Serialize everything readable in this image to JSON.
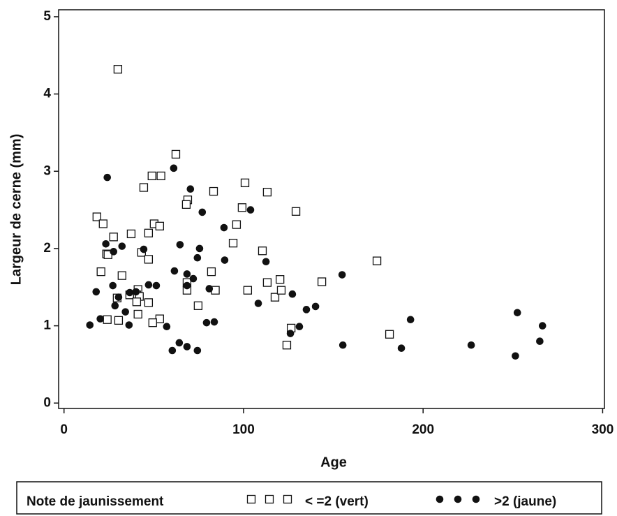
{
  "chart_data": {
    "type": "scatter",
    "x_label": "Age",
    "y_label": "Largeur de cerne (mm)",
    "xlim": [
      -3,
      301
    ],
    "ylim": [
      -0.07,
      5.09
    ],
    "xticks": [
      0,
      100,
      200,
      300
    ],
    "yticks": [
      0,
      1,
      2,
      3,
      4,
      5
    ],
    "legend_title": "Note de jaunissement",
    "legend_position": "bottom",
    "series": [
      {
        "name": "< =2 (vert)",
        "color": "#111111",
        "marker": "square",
        "x": [
          30,
          18.3,
          21.8,
          23.7,
          27.6,
          20.6,
          32.3,
          37.4,
          44.4,
          49,
          54,
          62.3,
          68.9,
          68.1,
          83.3,
          100.8,
          113.2,
          99.2,
          129.2,
          96.1,
          94.2,
          110.5,
          47.1,
          50.2,
          53.3,
          43.2,
          47.1,
          82.1,
          174.3,
          143.6,
          113.2,
          120.3,
          117.5,
          121,
          102.3,
          84.3,
          68.5,
          68.5,
          41.2,
          40.5,
          42,
          36.6,
          29.6,
          40.5,
          47.1,
          74.7,
          41.2,
          24.1,
          30.4,
          53.3,
          49.4,
          126.5,
          124.1,
          181.3,
          24.5
        ],
        "values": [
          4.32,
          2.41,
          2.32,
          1.93,
          2.15,
          1.7,
          1.65,
          2.19,
          2.79,
          2.94,
          2.94,
          3.22,
          2.63,
          2.57,
          2.74,
          2.85,
          2.73,
          2.53,
          2.48,
          2.31,
          2.07,
          1.97,
          2.2,
          2.32,
          2.29,
          1.95,
          1.86,
          1.7,
          1.84,
          1.57,
          1.56,
          1.6,
          1.37,
          1.46,
          1.46,
          1.46,
          1.56,
          1.46,
          1.47,
          1.4,
          1.38,
          1.4,
          1.36,
          1.31,
          1.3,
          1.26,
          1.15,
          1.08,
          1.07,
          1.09,
          1.04,
          0.97,
          0.75,
          0.89,
          1.92
        ]
      },
      {
        "name": ">2 (jaune)",
        "color": "#111111",
        "marker": "circle",
        "x": [
          24.1,
          61.1,
          70.4,
          77,
          103.9,
          89.1,
          23.3,
          32.3,
          27.6,
          44.4,
          64.6,
          75.5,
          74.3,
          89.5,
          112.5,
          61.5,
          68.5,
          72,
          154.9,
          47.1,
          51.4,
          68.5,
          27.2,
          80.9,
          17.9,
          36.6,
          40.1,
          127.2,
          30.4,
          28.4,
          34.2,
          135,
          140.1,
          108.2,
          83.7,
          79.4,
          20.2,
          14.4,
          36.2,
          57.2,
          131.1,
          126.1,
          193,
          252.5,
          266.5,
          64.2,
          68.5,
          60.3,
          74.3,
          155.3,
          187.9,
          226.8,
          265,
          251.4
        ],
        "values": [
          2.92,
          3.04,
          2.77,
          2.47,
          2.5,
          2.27,
          2.06,
          2.03,
          1.96,
          1.99,
          2.05,
          2.0,
          1.88,
          1.85,
          1.83,
          1.71,
          1.67,
          1.61,
          1.66,
          1.53,
          1.52,
          1.52,
          1.52,
          1.48,
          1.44,
          1.43,
          1.44,
          1.41,
          1.37,
          1.26,
          1.18,
          1.21,
          1.25,
          1.29,
          1.05,
          1.04,
          1.09,
          1.01,
          1.01,
          0.99,
          0.99,
          0.9,
          1.08,
          1.17,
          1.0,
          0.78,
          0.73,
          0.68,
          0.68,
          0.75,
          0.71,
          0.75,
          0.8,
          0.61
        ]
      }
    ]
  }
}
